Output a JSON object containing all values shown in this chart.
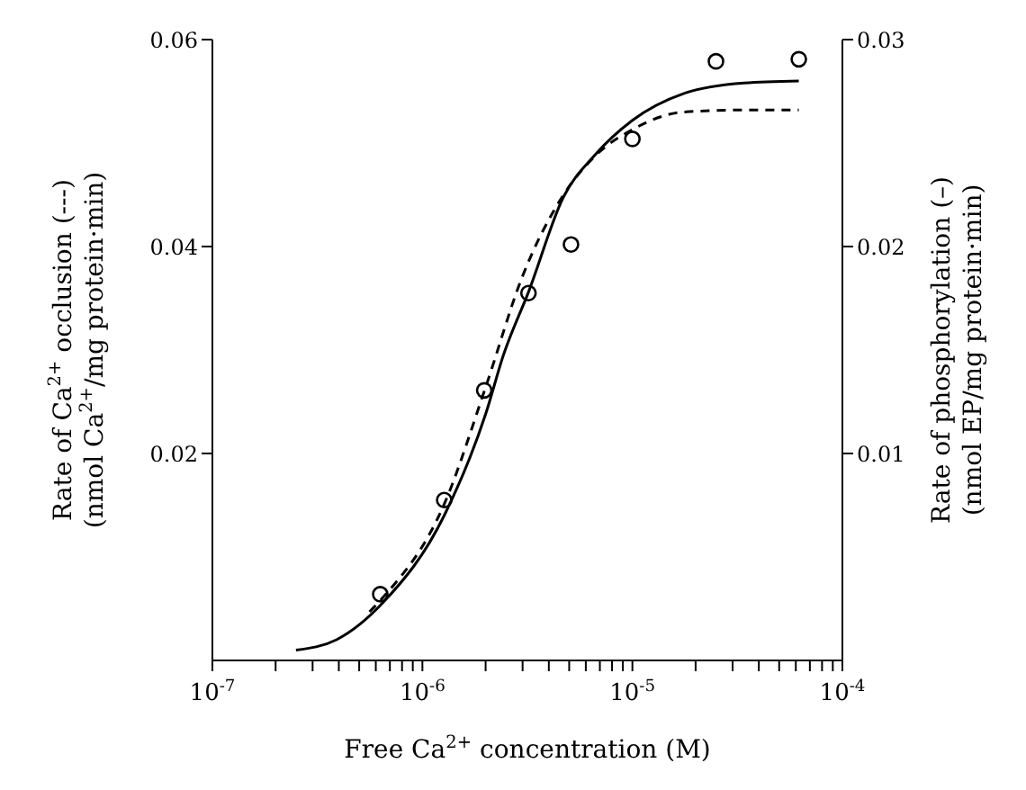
{
  "chart_data": {
    "type": "line",
    "xlabel": "Free Ca$^{2+}$ concentration (M)",
    "ylabel": "Rate of Ca$^{2+}$ occlusion (---)\n(nmol Ca$^{2+}$/mg protein·min)",
    "y2label": "Rate of phosphorylation (–)\n(nmol EP/mg protein·min)",
    "log": "x",
    "grid": false,
    "legend": false,
    "xlim": [
      1e-07,
      0.0001
    ],
    "xticks": [
      {
        "value": 1e-07,
        "label": "10$^{-7}$"
      },
      {
        "value": 2e-07,
        "label": null
      },
      {
        "value": 3e-07,
        "label": null
      },
      {
        "value": 4e-07,
        "label": null
      },
      {
        "value": 5e-07,
        "label": null
      },
      {
        "value": 6e-07,
        "label": null
      },
      {
        "value": 7e-07,
        "label": null
      },
      {
        "value": 8e-07,
        "label": null
      },
      {
        "value": 9e-07,
        "label": null
      },
      {
        "value": 1e-06,
        "label": "10$^{-6}$"
      },
      {
        "value": 2e-06,
        "label": null
      },
      {
        "value": 3e-06,
        "label": null
      },
      {
        "value": 4e-06,
        "label": null
      },
      {
        "value": 5e-06,
        "label": null
      },
      {
        "value": 6e-06,
        "label": null
      },
      {
        "value": 7e-06,
        "label": null
      },
      {
        "value": 8e-06,
        "label": null
      },
      {
        "value": 9e-06,
        "label": null
      },
      {
        "value": 1e-05,
        "label": "10$^{-5}$"
      },
      {
        "value": 2e-05,
        "label": null
      },
      {
        "value": 3e-05,
        "label": null
      },
      {
        "value": 4e-05,
        "label": null
      },
      {
        "value": 5e-05,
        "label": null
      },
      {
        "value": 6e-05,
        "label": null
      },
      {
        "value": 7e-05,
        "label": null
      },
      {
        "value": 8e-05,
        "label": null
      },
      {
        "value": 9e-05,
        "label": null
      },
      {
        "value": 0.0001,
        "label": "10$^{-4}$"
      }
    ],
    "ylim": [
      0,
      0.06
    ],
    "yticks": [
      0.02,
      0.04,
      0.06
    ],
    "y2lim": [
      0,
      0.03
    ],
    "y2ticks": [
      0.01,
      0.02,
      0.03
    ],
    "series": [
      {
        "type": "scatter",
        "marker": "circle",
        "color": "#000000",
        "x": [
          6.3e-07,
          1.27e-06,
          1.97e-06,
          3.2e-06,
          5.1e-06,
          1e-05,
          2.5e-05,
          6.2e-05
        ],
        "values": [
          0.0064,
          0.0155,
          0.0261,
          0.0355,
          0.0402,
          0.0504,
          0.0579,
          0.0581
        ]
      },
      {
        "line_style": "dashed",
        "marker": "none",
        "color": "#000000",
        "x": [
          5.6e-07,
          6.5e-07,
          1.27e-06,
          2e-06,
          2.98e-06,
          4.7e-06,
          6.6e-06,
          1e-05,
          1.76e-05,
          3.4e-05,
          6.2e-05
        ],
        "values": [
          0.0047,
          0.0061,
          0.0151,
          0.0264,
          0.037,
          0.045,
          0.0487,
          0.0513,
          0.053,
          0.0532,
          0.0532
        ]
      },
      {
        "line_style": "solid",
        "marker": "none",
        "axis": "y2",
        "color": "#000000",
        "x": [
          2.5e-07,
          3.9e-07,
          6.5e-07,
          1.27e-06,
          2e-06,
          2.44e-06,
          3.2e-06,
          4.7e-06,
          6.6e-06,
          1e-05,
          1.76e-05,
          3.4e-05,
          6.2e-05
        ],
        "values": [
          0.0005,
          0.001,
          0.0028,
          0.007,
          0.0119,
          0.0148,
          0.0178,
          0.0224,
          0.0244,
          0.0261,
          0.0274,
          0.0279,
          0.028
        ]
      }
    ]
  }
}
